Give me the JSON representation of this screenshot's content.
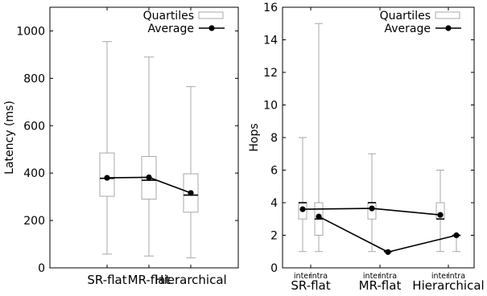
{
  "chart_data": [
    {
      "type": "box",
      "ylabel": "Latency (ms)",
      "ylim": [
        0,
        1100
      ],
      "yticks": [
        "0",
        "200",
        "400",
        "600",
        "800",
        "1000"
      ],
      "categories": [
        "SR-flat",
        "MR-flat",
        "Hierarchical"
      ],
      "legend": {
        "quartiles_label": "Quartiles",
        "average_label": "Average",
        "placement": "top-right"
      },
      "boxes": [
        {
          "category": "SR-flat",
          "min": 58,
          "q1": 302,
          "median": 378,
          "q3": 485,
          "max": 955,
          "mean": 380
        },
        {
          "category": "MR-flat",
          "min": 50,
          "q1": 290,
          "median": 370,
          "q3": 470,
          "max": 890,
          "mean": 382
        },
        {
          "category": "Hierarchical",
          "min": 42,
          "q1": 235,
          "median": 307,
          "q3": 397,
          "max": 765,
          "mean": 316
        }
      ]
    },
    {
      "type": "box",
      "ylabel": "Hops",
      "ylim": [
        0,
        16
      ],
      "yticks": [
        "0",
        "2",
        "4",
        "6",
        "8",
        "10",
        "12",
        "14",
        "16"
      ],
      "categories": [
        "SR-flat",
        "MR-flat",
        "Hierarchical"
      ],
      "subcategories": [
        "inter",
        "intra"
      ],
      "legend": {
        "quartiles_label": "Quartiles",
        "average_label": "Average",
        "placement": "top-right"
      },
      "boxes": [
        {
          "category": "SR-flat",
          "sub": "inter",
          "min": 1,
          "q1": 3,
          "median": 4,
          "q3": 4,
          "max": 8,
          "mean": 3.6
        },
        {
          "category": "SR-flat",
          "sub": "intra",
          "min": 1,
          "q1": 2,
          "median": 3,
          "q3": 4,
          "max": 15,
          "mean": 3.15
        },
        {
          "category": "MR-flat",
          "sub": "inter",
          "min": 1,
          "q1": 3,
          "median": 4,
          "q3": 4,
          "max": 7,
          "mean": 3.65
        },
        {
          "category": "MR-flat",
          "sub": "intra",
          "min": 1,
          "q1": 1,
          "median": 1,
          "q3": 1,
          "max": 1,
          "mean": 0.97
        },
        {
          "category": "Hierarchical",
          "sub": "inter",
          "min": 1,
          "q1": 3,
          "median": 3,
          "q3": 4,
          "max": 6,
          "mean": 3.25
        },
        {
          "category": "Hierarchical",
          "sub": "intra",
          "min": 1,
          "q1": 2,
          "median": 2,
          "q3": 2,
          "max": 2,
          "mean": 2.0
        }
      ],
      "average_lines": [
        {
          "from": "SR-flat.inter",
          "to": "MR-flat.inter"
        },
        {
          "from": "MR-flat.inter",
          "to": "Hierarchical.inter"
        },
        {
          "from": "SR-flat.intra",
          "to": "MR-flat.intra"
        },
        {
          "from": "MR-flat.intra",
          "to": "Hierarchical.intra"
        }
      ]
    }
  ]
}
